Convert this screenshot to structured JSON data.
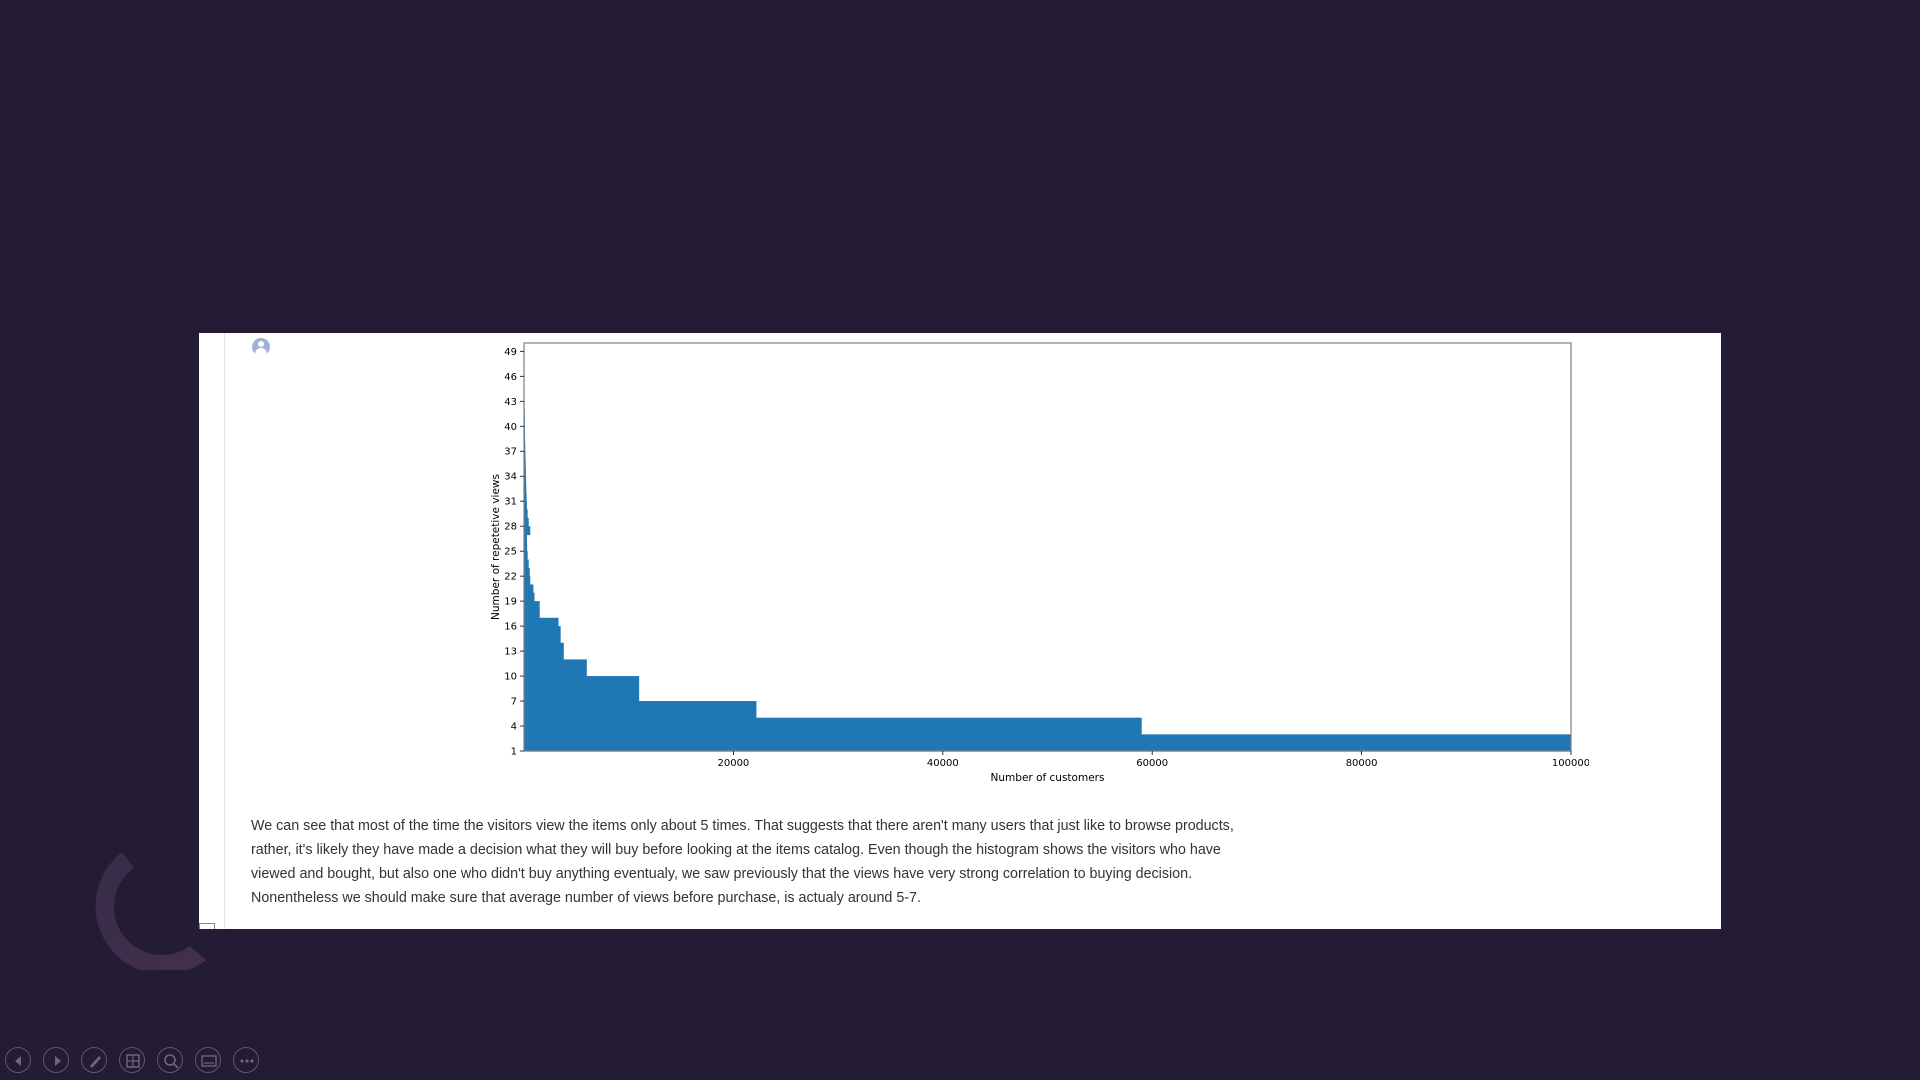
{
  "chart_data": {
    "type": "bar",
    "orientation": "horizontal",
    "xlabel": "Number of customers",
    "ylabel": "Number of repetetive views",
    "xlim": [
      0,
      100000
    ],
    "ylim": [
      1,
      50
    ],
    "xticks": [
      20000,
      40000,
      60000,
      80000,
      100000
    ],
    "yticks": [
      1,
      4,
      7,
      10,
      13,
      16,
      19,
      22,
      25,
      28,
      31,
      34,
      37,
      40,
      43,
      46,
      49
    ],
    "color": "#1f77b4",
    "categories": [
      1,
      2,
      3,
      4,
      5,
      6,
      7,
      8,
      9,
      10,
      11,
      12,
      13,
      14,
      15,
      16,
      17,
      18,
      19,
      20,
      21,
      22,
      23,
      24,
      25,
      26,
      27,
      28,
      29,
      30,
      31,
      32,
      33,
      34,
      35,
      36,
      37,
      38,
      39,
      40,
      41,
      42
    ],
    "values": [
      100000,
      100000,
      59000,
      59000,
      22200,
      22200,
      11000,
      11000,
      11000,
      6000,
      6000,
      3800,
      3800,
      3500,
      3500,
      3300,
      1500,
      1500,
      1000,
      900,
      600,
      550,
      450,
      350,
      300,
      280,
      600,
      450,
      350,
      280,
      250,
      220,
      200,
      180,
      160,
      140,
      120,
      100,
      90,
      80,
      70,
      60
    ],
    "grid": false,
    "legend": "none"
  },
  "body_text": "We can see that most of the time the visitors view the items only about 5 times. That suggests that there aren't many users that just like to browse products, rather, it's likely they have made a decision what they will buy before looking at the items catalog. Even though the histogram shows the visitors who have viewed and bought, but also one who didn't buy anything eventualy, we saw previously that the views have very strong correlation to buying decision. Nonentheless we should make sure that average number of views before purchase, is actualy around 5-7.",
  "toolbar": {
    "buttons": [
      "previous-icon",
      "next-icon",
      "pen-icon",
      "slides-grid-icon",
      "zoom-icon",
      "subtitles-icon",
      "more-options-icon"
    ]
  },
  "colors": {
    "background": "#241c34",
    "slide": "#ffffff",
    "bar": "#1f77b4"
  }
}
